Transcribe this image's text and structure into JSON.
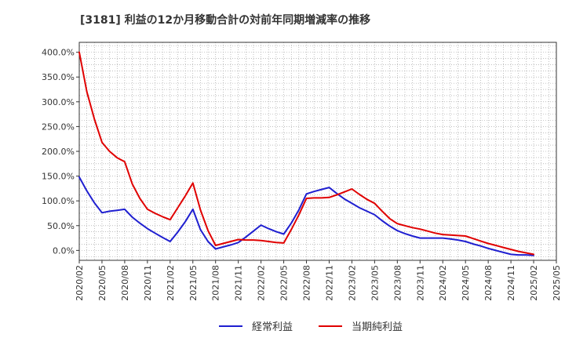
{
  "chart_data": {
    "type": "line",
    "title": "[3181]  利益の12か月移動合計の対前年同期増減率の推移",
    "xlabel": "",
    "ylabel": "",
    "ylim": [
      -20,
      420
    ],
    "y_ticks": [
      0,
      50,
      100,
      150,
      200,
      250,
      300,
      350,
      400
    ],
    "y_tick_labels": [
      "0.0%",
      "50.0%",
      "100.0%",
      "150.0%",
      "200.0%",
      "250.0%",
      "300.0%",
      "350.0%",
      "400.0%"
    ],
    "x_range": [
      "2020/02",
      "2025/05"
    ],
    "x_tick_labels": [
      "2020/02",
      "2020/05",
      "2020/08",
      "2020/11",
      "2021/02",
      "2021/05",
      "2021/08",
      "2021/11",
      "2022/02",
      "2022/05",
      "2022/08",
      "2022/11",
      "2023/02",
      "2023/05",
      "2023/08",
      "2023/11",
      "2024/02",
      "2024/05",
      "2024/08",
      "2024/11",
      "2025/02",
      "2025/05"
    ],
    "grid": true,
    "legend_position": "bottom",
    "series": [
      {
        "name": "経常利益",
        "color": "#1f1fd0",
        "points": [
          [
            "2020/02",
            148
          ],
          [
            "2020/03",
            120
          ],
          [
            "2020/04",
            96
          ],
          [
            "2020/05",
            76
          ],
          [
            "2020/06",
            79
          ],
          [
            "2020/07",
            81
          ],
          [
            "2020/08",
            83
          ],
          [
            "2020/09",
            67
          ],
          [
            "2020/10",
            55
          ],
          [
            "2020/11",
            44
          ],
          [
            "2020/12",
            35
          ],
          [
            "2021/01",
            26
          ],
          [
            "2021/02",
            18
          ],
          [
            "2021/03",
            37
          ],
          [
            "2021/04",
            58
          ],
          [
            "2021/05",
            83
          ],
          [
            "2021/06",
            42
          ],
          [
            "2021/07",
            18
          ],
          [
            "2021/08",
            3
          ],
          [
            "2021/09",
            7
          ],
          [
            "2021/10",
            11
          ],
          [
            "2021/11",
            16
          ],
          [
            "2021/12",
            27
          ],
          [
            "2022/01",
            39
          ],
          [
            "2022/02",
            51
          ],
          [
            "2022/03",
            44
          ],
          [
            "2022/04",
            38
          ],
          [
            "2022/05",
            33
          ],
          [
            "2022/06",
            55
          ],
          [
            "2022/07",
            82
          ],
          [
            "2022/08",
            114
          ],
          [
            "2022/09",
            119
          ],
          [
            "2022/10",
            123
          ],
          [
            "2022/11",
            127
          ],
          [
            "2022/12",
            115
          ],
          [
            "2023/01",
            104
          ],
          [
            "2023/02",
            95
          ],
          [
            "2023/03",
            86
          ],
          [
            "2023/04",
            79
          ],
          [
            "2023/05",
            72
          ],
          [
            "2023/06",
            60
          ],
          [
            "2023/07",
            49
          ],
          [
            "2023/08",
            40
          ],
          [
            "2023/09",
            34
          ],
          [
            "2023/10",
            29
          ],
          [
            "2023/11",
            25
          ],
          [
            "2023/12",
            25
          ],
          [
            "2024/01",
            25
          ],
          [
            "2024/02",
            25
          ],
          [
            "2024/03",
            23
          ],
          [
            "2024/04",
            21
          ],
          [
            "2024/05",
            18
          ],
          [
            "2024/06",
            13
          ],
          [
            "2024/07",
            9
          ],
          [
            "2024/08",
            4
          ],
          [
            "2024/09",
            0
          ],
          [
            "2024/10",
            -4
          ],
          [
            "2024/11",
            -8
          ],
          [
            "2024/12",
            -9
          ],
          [
            "2025/01",
            -9
          ],
          [
            "2025/02",
            -10
          ]
        ]
      },
      {
        "name": "当期純利益",
        "color": "#e00000",
        "points": [
          [
            "2020/02",
            400
          ],
          [
            "2020/03",
            320
          ],
          [
            "2020/04",
            265
          ],
          [
            "2020/05",
            218
          ],
          [
            "2020/06",
            200
          ],
          [
            "2020/07",
            187
          ],
          [
            "2020/08",
            179
          ],
          [
            "2020/09",
            134
          ],
          [
            "2020/10",
            105
          ],
          [
            "2020/11",
            83
          ],
          [
            "2020/12",
            75
          ],
          [
            "2021/01",
            68
          ],
          [
            "2021/02",
            62
          ],
          [
            "2021/03",
            86
          ],
          [
            "2021/04",
            110
          ],
          [
            "2021/05",
            136
          ],
          [
            "2021/06",
            82
          ],
          [
            "2021/07",
            40
          ],
          [
            "2021/08",
            10
          ],
          [
            "2021/09",
            14
          ],
          [
            "2021/10",
            18
          ],
          [
            "2021/11",
            22
          ],
          [
            "2021/12",
            21
          ],
          [
            "2022/01",
            21
          ],
          [
            "2022/02",
            20
          ],
          [
            "2022/03",
            18
          ],
          [
            "2022/04",
            16
          ],
          [
            "2022/05",
            15
          ],
          [
            "2022/06",
            42
          ],
          [
            "2022/07",
            72
          ],
          [
            "2022/08",
            105
          ],
          [
            "2022/09",
            106
          ],
          [
            "2022/10",
            106
          ],
          [
            "2022/11",
            107
          ],
          [
            "2022/12",
            112
          ],
          [
            "2023/01",
            118
          ],
          [
            "2023/02",
            124
          ],
          [
            "2023/03",
            113
          ],
          [
            "2023/04",
            103
          ],
          [
            "2023/05",
            95
          ],
          [
            "2023/06",
            79
          ],
          [
            "2023/07",
            64
          ],
          [
            "2023/08",
            54
          ],
          [
            "2023/09",
            50
          ],
          [
            "2023/10",
            46
          ],
          [
            "2023/11",
            43
          ],
          [
            "2023/12",
            39
          ],
          [
            "2024/01",
            35
          ],
          [
            "2024/02",
            32
          ],
          [
            "2024/03",
            31
          ],
          [
            "2024/04",
            30
          ],
          [
            "2024/05",
            29
          ],
          [
            "2024/06",
            24
          ],
          [
            "2024/07",
            19
          ],
          [
            "2024/08",
            14
          ],
          [
            "2024/09",
            10
          ],
          [
            "2024/10",
            6
          ],
          [
            "2024/11",
            2
          ],
          [
            "2024/12",
            -2
          ],
          [
            "2025/01",
            -5
          ],
          [
            "2025/02",
            -8
          ]
        ]
      }
    ]
  }
}
